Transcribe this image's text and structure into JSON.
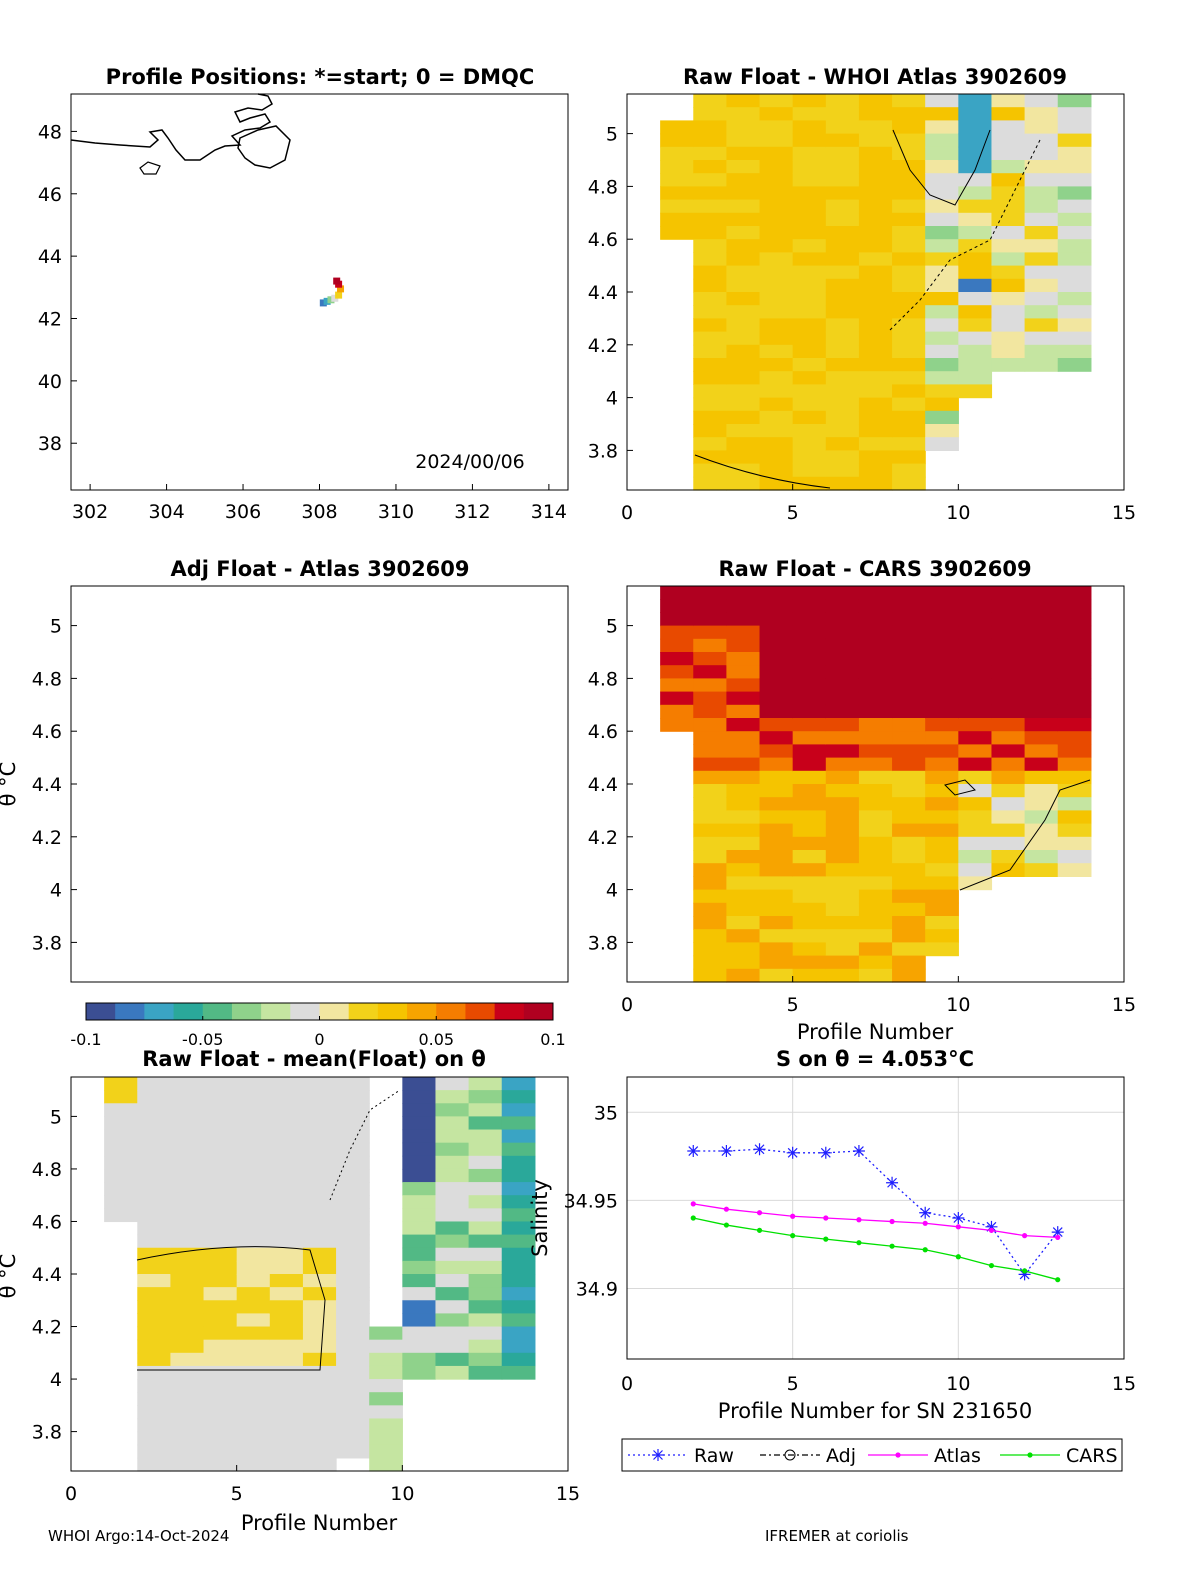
{
  "colors": {
    "colormap": [
      "#3b4e93",
      "#3a78bf",
      "#3aa4c4",
      "#2aa89a",
      "#52b985",
      "#8fd28b",
      "#c5e5a1",
      "#dcdcdc",
      "#f2e6a0",
      "#f2d21a",
      "#f5c400",
      "#f7a400",
      "#f57d00",
      "#e84a00",
      "#c8001a",
      "#b00020"
    ],
    "raw": "#1f1fff",
    "atlas": "#ff00ff",
    "cars": "#00e000",
    "adj": "#000000",
    "grid": "#d9d9d9"
  },
  "map": {
    "title": "Profile Positions: *=start; 0 = DMQC",
    "date_label": "2024/00/06",
    "xlim": [
      301.5,
      314.5
    ],
    "ylim": [
      36.5,
      49.2
    ],
    "xticks": [
      "302",
      "304",
      "306",
      "308",
      "310",
      "312",
      "314"
    ],
    "yticks": [
      "38",
      "40",
      "42",
      "44",
      "46",
      "48"
    ],
    "positions": [
      {
        "lon": 308.1,
        "lat": 42.5,
        "c": 0.05
      },
      {
        "lon": 308.2,
        "lat": 42.55,
        "c": 0.15
      },
      {
        "lon": 308.3,
        "lat": 42.6,
        "c": 0.3
      },
      {
        "lon": 308.4,
        "lat": 42.65,
        "c": 0.45
      },
      {
        "lon": 308.5,
        "lat": 42.75,
        "c": 0.6
      },
      {
        "lon": 308.55,
        "lat": 42.95,
        "c": 0.75
      },
      {
        "lon": 308.5,
        "lat": 43.1,
        "c": 0.9
      },
      {
        "lon": 308.45,
        "lat": 43.2,
        "c": 1.0
      }
    ]
  },
  "panels": {
    "whoi": {
      "title": "Raw Float - WHOI Atlas  3902609"
    },
    "adj": {
      "title": "Adj Float - Atlas  3902609",
      "ylabel": "θ °C"
    },
    "cars": {
      "title": "Raw Float - CARS  3902609",
      "xlabel": "Profile Number"
    },
    "mean": {
      "title": "Raw Float - mean(Float) on θ",
      "ylabel": "θ °C",
      "xlabel": "Profile Number"
    }
  },
  "theta_axis": {
    "xlim": [
      0,
      15
    ],
    "ylim": [
      3.65,
      5.15
    ],
    "xticks": [
      "0",
      "5",
      "10",
      "15"
    ],
    "yticks": [
      "3.8",
      "4",
      "4.2",
      "4.4",
      "4.6",
      "4.8",
      "5"
    ]
  },
  "colorbar": {
    "min": -0.1,
    "max": 0.1,
    "ticks": [
      "-0.1",
      "-0.05",
      "0",
      "0.05",
      "0.1"
    ]
  },
  "chart_data": {
    "type": "line",
    "title": "S on θ = 4.053°C",
    "xlabel": "Profile Number for SN 231650",
    "ylabel": "Salinity",
    "xlim": [
      0,
      15
    ],
    "ylim": [
      34.86,
      35.02
    ],
    "xticks": [
      "0",
      "5",
      "10",
      "15"
    ],
    "yticks": [
      "34.9",
      "34.95",
      "35"
    ],
    "grid": true,
    "legend_position": "bottom",
    "series": [
      {
        "name": "Raw",
        "x": [
          2,
          3,
          4,
          5,
          6,
          7,
          8,
          9,
          10,
          11,
          12,
          13
        ],
        "values": [
          34.978,
          34.978,
          34.979,
          34.977,
          34.977,
          34.978,
          34.96,
          34.943,
          34.94,
          34.935,
          34.908,
          34.932
        ]
      },
      {
        "name": "Adj",
        "x": [],
        "values": []
      },
      {
        "name": "Atlas",
        "x": [
          2,
          3,
          4,
          5,
          6,
          7,
          8,
          9,
          10,
          11,
          12,
          13
        ],
        "values": [
          34.948,
          34.945,
          34.943,
          34.941,
          34.94,
          34.939,
          34.938,
          34.937,
          34.935,
          34.933,
          34.93,
          34.929
        ]
      },
      {
        "name": "CARS",
        "x": [
          2,
          3,
          4,
          5,
          6,
          7,
          8,
          9,
          10,
          11,
          12,
          13
        ],
        "values": [
          34.94,
          34.936,
          34.933,
          34.93,
          34.928,
          34.926,
          34.924,
          34.922,
          34.918,
          34.913,
          34.91,
          34.905
        ]
      }
    ]
  },
  "footer": {
    "left": "WHOI Argo:14-Oct-2024",
    "right": "IFREMER at coriolis"
  }
}
